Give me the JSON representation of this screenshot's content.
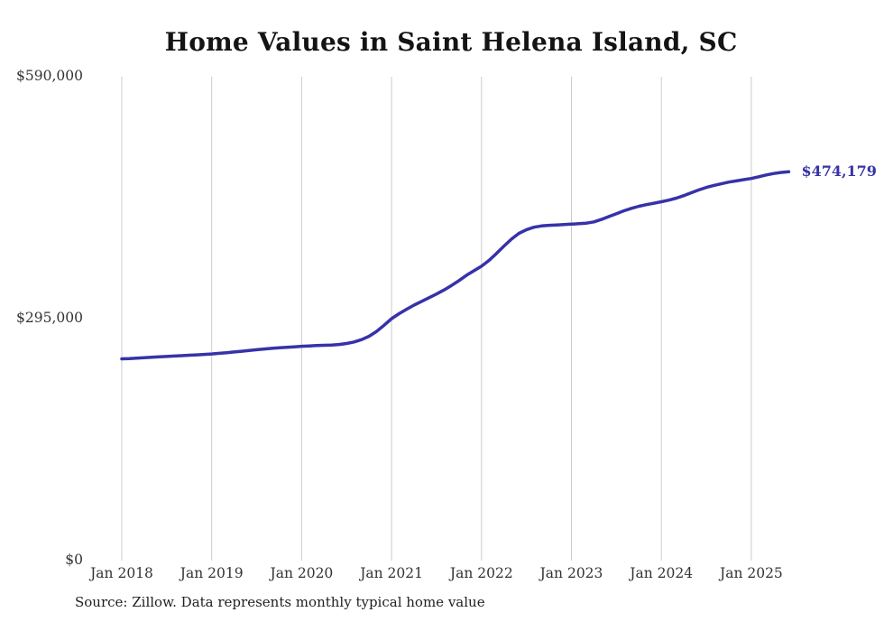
{
  "chart": {
    "title": "Home Values in Saint Helena Island, SC",
    "end_label": "$474,179",
    "source": "Source: Zillow. Data represents monthly typical home value",
    "line_color": "#3732a8",
    "grid_color": "#cccccc"
  },
  "chart_data": {
    "type": "line",
    "title": "Home Values in Saint Helena Island, SC",
    "xlabel": "",
    "ylabel": "",
    "ylim": [
      0,
      590000
    ],
    "grid": "vertical-only",
    "legend_position": "none",
    "y_ticks": [
      {
        "value": 590000,
        "label": "$590,000"
      },
      {
        "value": 295000,
        "label": "$295,000"
      },
      {
        "value": 0,
        "label": "$0"
      }
    ],
    "x_ticks": [
      "Jan 2018",
      "Jan 2019",
      "Jan 2020",
      "Jan 2021",
      "Jan 2022",
      "Jan 2023",
      "Jan 2024",
      "Jan 2025"
    ],
    "x_start": "Jan 2018",
    "x_interval": "monthly",
    "final_value": 474179,
    "final_value_label": "$474,179",
    "values": [
      246000,
      246400,
      246900,
      247400,
      247900,
      248400,
      248900,
      249400,
      249900,
      250400,
      250900,
      251400,
      252000,
      252700,
      253500,
      254400,
      255300,
      256200,
      257100,
      258000,
      258800,
      259500,
      260100,
      260700,
      261300,
      261800,
      262200,
      262500,
      262900,
      263500,
      264700,
      266600,
      269500,
      273500,
      279500,
      287000,
      295000,
      301000,
      306500,
      311500,
      316000,
      320500,
      325000,
      330000,
      335500,
      341500,
      348000,
      353500,
      359000,
      366000,
      374500,
      383500,
      392000,
      399000,
      403500,
      406500,
      408000,
      408800,
      409300,
      409800,
      410300,
      410800,
      411500,
      413000,
      416000,
      419500,
      423000,
      426500,
      429500,
      432000,
      434000,
      435800,
      437500,
      439500,
      442000,
      445000,
      448500,
      452000,
      455000,
      457500,
      459500,
      461500,
      463000,
      464500,
      466000,
      468000,
      470200,
      472000,
      473300,
      474179
    ]
  }
}
